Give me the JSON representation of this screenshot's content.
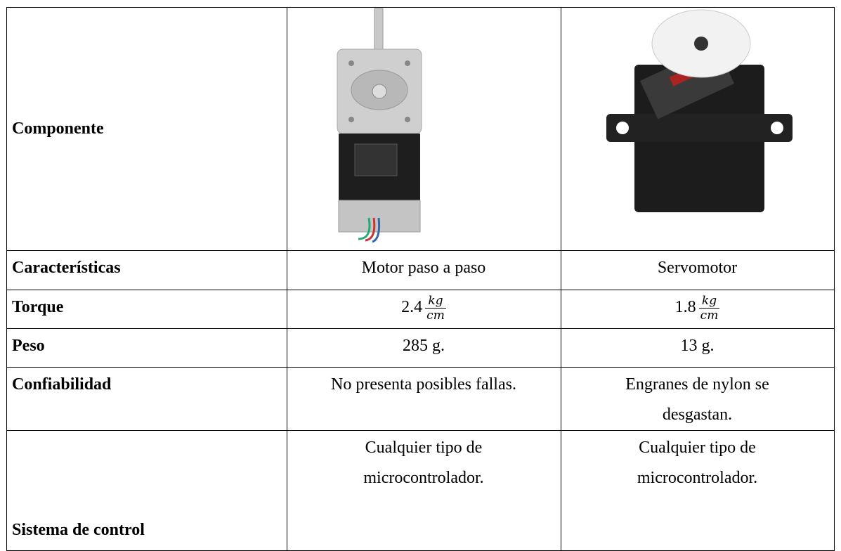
{
  "table": {
    "header": {
      "label": "Componente"
    },
    "rows": [
      {
        "label": "Características",
        "cells": [
          "Motor paso a paso",
          "Servomotor"
        ]
      },
      {
        "label": "Torque",
        "cells": [
          {
            "value": 2.4,
            "numerator": "kg",
            "denominator": "cm"
          },
          {
            "value": 1.8,
            "numerator": "kg",
            "denominator": "cm"
          }
        ]
      },
      {
        "label": "Peso",
        "cells": [
          "285 g.",
          "13 g."
        ]
      },
      {
        "label": "Confiabilidad",
        "cells": [
          "No presenta posibles fallas.",
          "Engranes de nylon se desgastan."
        ]
      },
      {
        "label": "Sistema de control",
        "cells": [
          "Cualquier tipo de microcontrolador.",
          "Cualquier tipo de microcontrolador."
        ]
      }
    ]
  }
}
